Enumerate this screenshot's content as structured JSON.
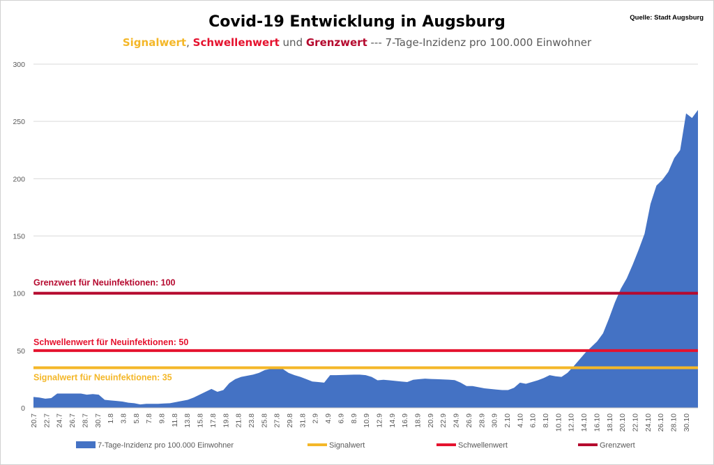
{
  "header": {
    "title": "Covid-19 Entwicklung in Augsburg",
    "source": "Quelle: Stadt Augsburg",
    "subtitle_part1": "Signalwert",
    "subtitle_sep1": ", ",
    "subtitle_part2": "Schwellenwert",
    "subtitle_sep2": " und ",
    "subtitle_part3": "Grenzwert",
    "subtitle_rest": " --- 7-Tage-Inzidenz pro 100.000 Einwohner"
  },
  "colors": {
    "area": "#4472C4",
    "signal": "#F4B728",
    "schwelle": "#E5122E",
    "grenze": "#B5092E",
    "grid": "#D9D9D9"
  },
  "chart_data": {
    "type": "area",
    "ylim": [
      0,
      300
    ],
    "yticks": [
      0,
      50,
      100,
      150,
      200,
      250,
      300
    ],
    "xtick_labels": [
      "20.7",
      "22.7",
      "24.7",
      "26.7",
      "28.7",
      "30.7",
      "1.8",
      "3.8",
      "5.8",
      "7.8",
      "9.8",
      "11.8",
      "13.8",
      "15.8",
      "17.8",
      "19.8",
      "21.8",
      "23.8",
      "25.8",
      "27.8",
      "29.8",
      "31.8",
      "2.9",
      "4.9",
      "6.9",
      "8.9",
      "10.9",
      "12.9",
      "14.9",
      "16.9",
      "18.9",
      "20.9",
      "22.9",
      "24.9",
      "26.9",
      "28.9",
      "30.9",
      "2.10",
      "4.10",
      "6.10",
      "8.10",
      "10.10",
      "12.10",
      "14.10",
      "16.10",
      "18.10",
      "20.10",
      "22.10",
      "24.10",
      "26.10",
      "28.10",
      "30.10"
    ],
    "series": [
      {
        "name": "7-Tage-Inzidenz pro 100.000 Einwohner",
        "kind": "area",
        "values": [
          9.5,
          9,
          8,
          8.5,
          12.5,
          12.5,
          12.5,
          12.5,
          12.5,
          11.5,
          12,
          11.5,
          7,
          6.5,
          6,
          5.5,
          4.5,
          4,
          3,
          3.5,
          3.5,
          3.5,
          3.8,
          4,
          5,
          6,
          7,
          9,
          11.5,
          14,
          16.5,
          14,
          15.5,
          21.5,
          25,
          27,
          28,
          29,
          30.5,
          33,
          34,
          34.5,
          34,
          30.5,
          28.5,
          27,
          25,
          23,
          22.5,
          22,
          28.5,
          28.5,
          28.7,
          28.8,
          29,
          29,
          28.5,
          27,
          24,
          24.5,
          24,
          23.5,
          23,
          22.5,
          24.5,
          25,
          25.5,
          25.2,
          25,
          24.8,
          24.6,
          24.2,
          22,
          19,
          19,
          18,
          17,
          16.5,
          16,
          15.5,
          15.5,
          17.5,
          22,
          21,
          22.5,
          24,
          26,
          28.5,
          27.5,
          27,
          30.5,
          36,
          42,
          48,
          53,
          58,
          65,
          78,
          92,
          104,
          113,
          125,
          138,
          152,
          178,
          194,
          199,
          206,
          218,
          225,
          257,
          253,
          260
        ]
      },
      {
        "name": "Signalwert",
        "kind": "line",
        "value": 35
      },
      {
        "name": "Schwellenwert",
        "kind": "line",
        "value": 50
      },
      {
        "name": "Grenzwert",
        "kind": "line",
        "value": 100
      }
    ],
    "annotations": {
      "grenze": "Grenzwert für Neuinfektionen: 100",
      "schwelle": "Schwellenwert für Neuinfektionen: 50",
      "signal": "Signalwert für Neuinfektionen: 35"
    },
    "legend_position": "bottom",
    "grid": true
  }
}
